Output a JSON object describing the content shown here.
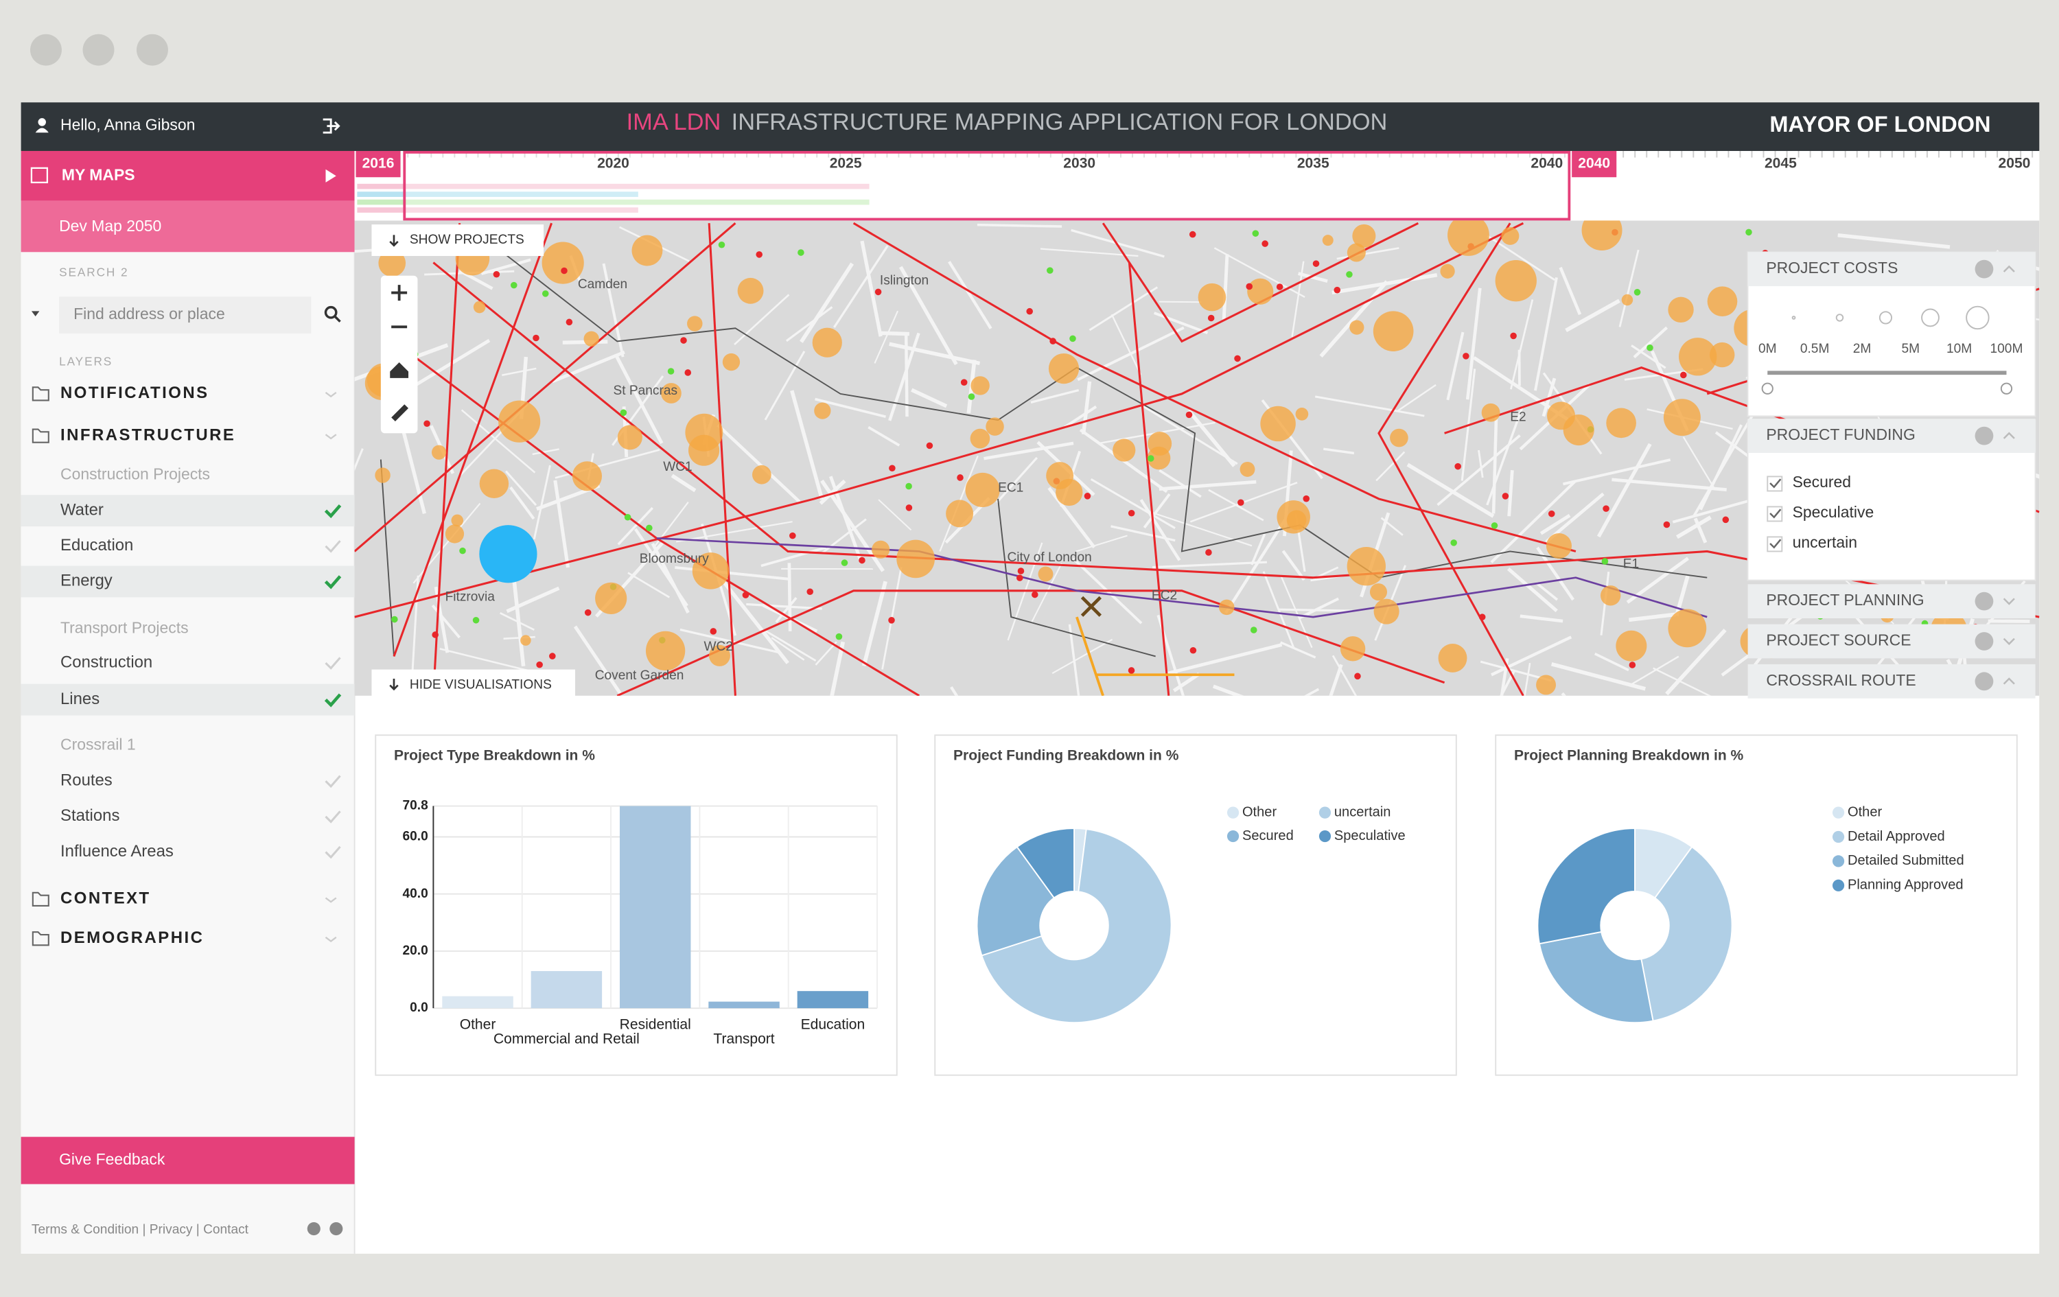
{
  "header": {
    "greeting": "Hello, Anna Gibson",
    "brand": "IMA LDN",
    "title": "INFRASTRUCTURE MAPPING APPLICATION FOR LONDON",
    "org": "MAYOR OF LONDON"
  },
  "sidebar": {
    "my_maps": "MY MAPS",
    "current_map": "Dev Map 2050",
    "search_label": "SEARCH 2",
    "search_placeholder": "Find address or place",
    "layers_label": "LAYERS",
    "layers": [
      {
        "label": "NOTIFICATIONS",
        "kind": "group"
      },
      {
        "label": "INFRASTRUCTURE",
        "kind": "group"
      },
      {
        "label": "Construction Projects",
        "kind": "subheader"
      },
      {
        "label": "Water",
        "kind": "item",
        "active": true
      },
      {
        "label": "Education",
        "kind": "item",
        "active": false
      },
      {
        "label": "Energy",
        "kind": "item",
        "active": true
      },
      {
        "label": "Transport Projects",
        "kind": "subheader"
      },
      {
        "label": "Construction",
        "kind": "item",
        "active": false
      },
      {
        "label": "Lines",
        "kind": "item",
        "active": true
      },
      {
        "label": "Crossrail 1",
        "kind": "subheader"
      },
      {
        "label": "Routes",
        "kind": "item",
        "active": false
      },
      {
        "label": "Stations",
        "kind": "item",
        "active": false
      },
      {
        "label": "Influence Areas",
        "kind": "item",
        "active": false
      },
      {
        "label": "CONTEXT",
        "kind": "group"
      },
      {
        "label": "DEMOGRAPHIC",
        "kind": "group"
      }
    ],
    "feedback": "Give Feedback",
    "footer": "Terms & Condition | Privacy | Contact"
  },
  "timeline": {
    "labels": [
      {
        "label": "2016",
        "highlight": true
      },
      {
        "label": "2020",
        "highlight": false
      },
      {
        "label": "2025",
        "highlight": false
      },
      {
        "label": "2030",
        "highlight": false
      },
      {
        "label": "2035",
        "highlight": false
      },
      {
        "label": "2040",
        "highlight": false
      },
      {
        "label": "2040",
        "highlight": true
      },
      {
        "label": "2045",
        "highlight": false
      },
      {
        "label": "2050",
        "highlight": false
      }
    ]
  },
  "map": {
    "show_projects": "SHOW PROJECTS",
    "hide_visualisations": "HIDE VISUALISATIONS",
    "place_labels": [
      "Camden",
      "Islington",
      "St Pancras",
      "WC1",
      "EC1",
      "Bloomsbury",
      "City of London",
      "EC2",
      "WC2",
      "Covent Garden",
      "Fitzrovia",
      "E2",
      "E1"
    ]
  },
  "panels": {
    "costs": {
      "title": "PROJECT COSTS",
      "scale": [
        "0M",
        "0.5M",
        "2M",
        "5M",
        "10M",
        "100M"
      ]
    },
    "funding": {
      "title": "PROJECT FUNDING",
      "options": [
        "Secured",
        "Speculative",
        "uncertain"
      ]
    },
    "collapsed": [
      "PROJECT PLANNING",
      "PROJECT SOURCE",
      "CROSSRAIL ROUTE"
    ]
  },
  "charts": [
    {
      "type": "bar",
      "title": "Project Type Breakdown in %",
      "categories": [
        "Other",
        "Commercial and Retail",
        "Residential",
        "Transport",
        "Education"
      ],
      "values": [
        4.2,
        13,
        70.8,
        2.3,
        6
      ],
      "colors": [
        "#dce8f2",
        "#c5d9eb",
        "#a8c6e0",
        "#8fb6d8",
        "#6a9fcb"
      ],
      "ylim": [
        0,
        70.8
      ],
      "yticks": [
        {
          "value": 0,
          "label": "0.0"
        },
        {
          "value": 20,
          "label": "20.0"
        },
        {
          "value": 40,
          "label": "40.0"
        },
        {
          "value": 60,
          "label": "60.0"
        },
        70.8
      ],
      "grid": true
    },
    {
      "type": "donut",
      "title": "Project Funding Breakdown in %",
      "categories": [
        "Other",
        "uncertain",
        "Secured",
        "Speculative"
      ],
      "values": [
        2,
        68,
        20,
        10
      ],
      "colors": [
        "#d6e6f2",
        "#b0cfe6",
        "#8ab7d9",
        "#5b98c7"
      ]
    },
    {
      "type": "donut",
      "title": "Project Planning Breakdown in %",
      "categories": [
        "Other",
        "Detail Approved",
        "Detailed Submitted",
        "Planning Approved"
      ],
      "values": [
        10,
        37,
        25,
        28
      ],
      "colors": [
        "#d6e6f2",
        "#b0cfe6",
        "#8ab7d9",
        "#5b98c7"
      ]
    }
  ]
}
